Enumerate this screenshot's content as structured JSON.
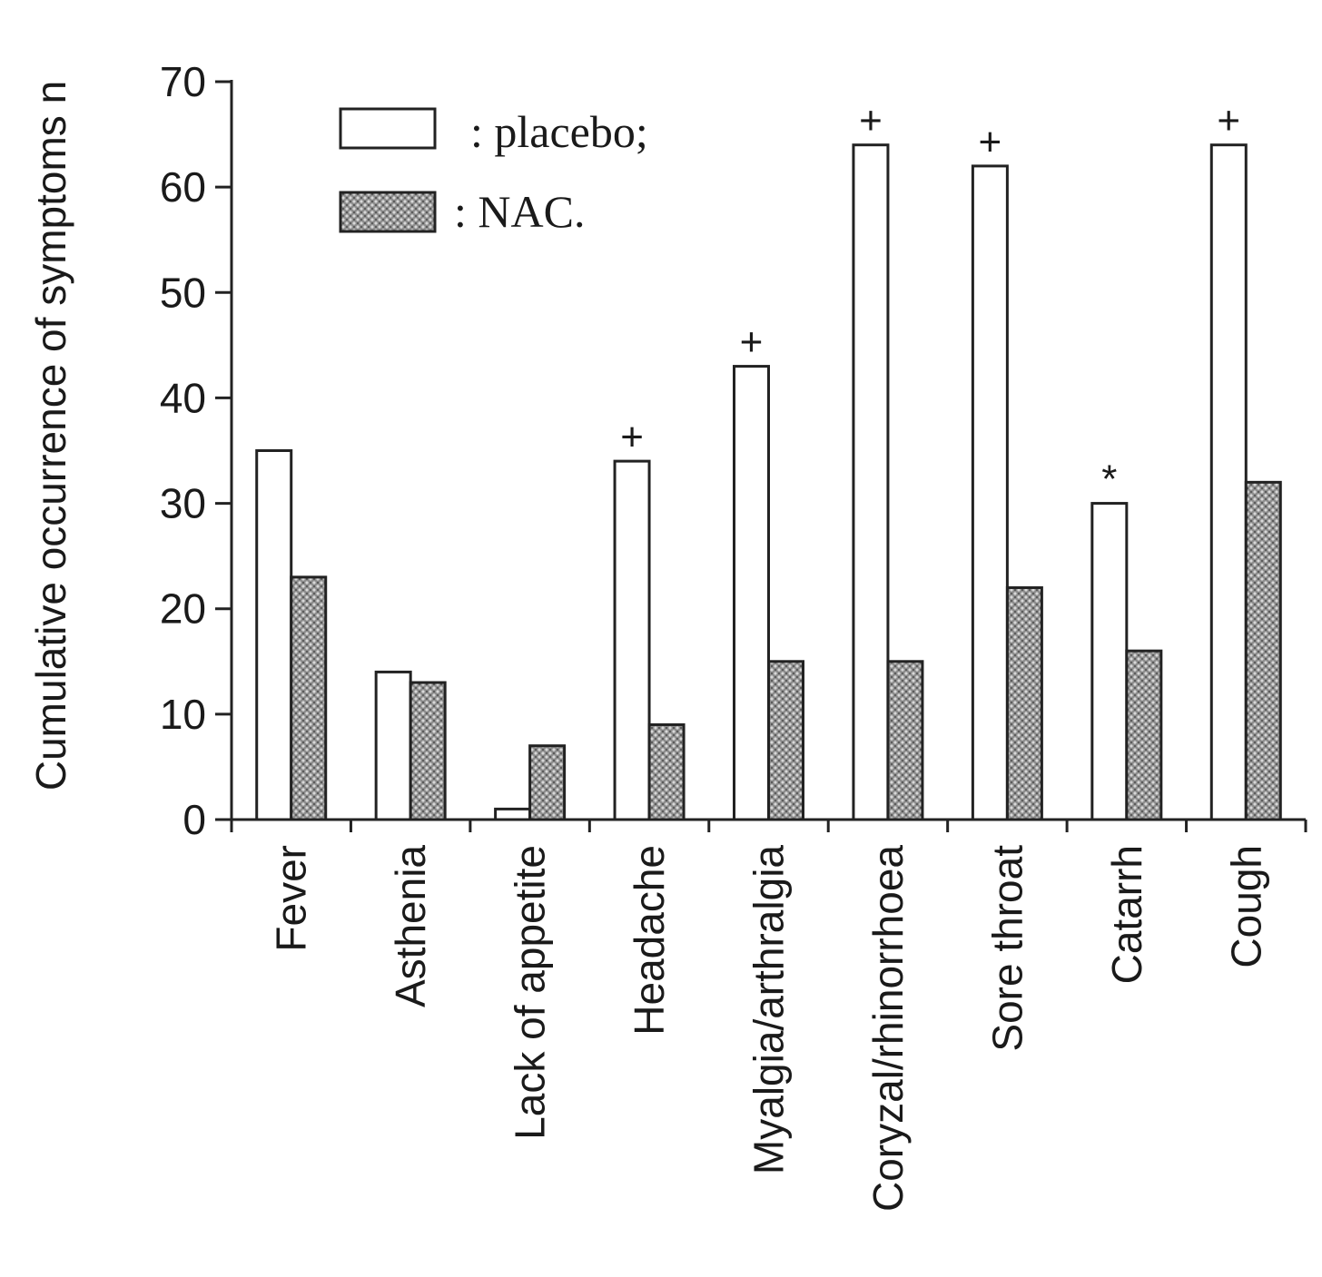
{
  "chart_data": {
    "type": "bar",
    "title": "",
    "xlabel": "",
    "ylabel": "Cumulative occurrence of symptoms n",
    "ylim": [
      0,
      70
    ],
    "yticks": [
      0,
      10,
      20,
      30,
      40,
      50,
      60,
      70
    ],
    "categories": [
      "Fever",
      "Asthenia",
      "Lack of appetite",
      "Headache",
      "Myalgia/arthralgia",
      "Coryzal/rhinorrhoea",
      "Sore throat",
      "Catarrh",
      "Cough"
    ],
    "series": [
      {
        "name": "placebo",
        "legend_label": ": placebo;",
        "fill": "#ffffff",
        "values": [
          35,
          14,
          1,
          34,
          43,
          64,
          62,
          30,
          64
        ]
      },
      {
        "name": "NAC",
        "legend_label": ": NAC.",
        "fill": "#9a9a9a",
        "values": [
          23,
          13,
          7,
          9,
          15,
          15,
          22,
          16,
          32
        ]
      }
    ],
    "significance_markers": [
      "",
      "",
      "",
      "+",
      "+",
      "+",
      "+",
      "*",
      "+"
    ],
    "legend": {
      "position": "top-left"
    },
    "grid": false
  }
}
